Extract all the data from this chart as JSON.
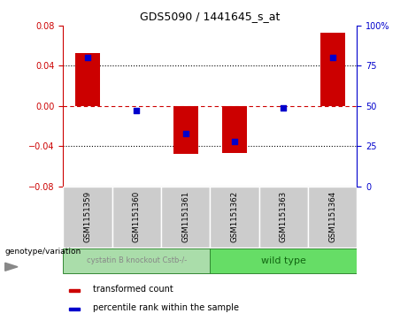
{
  "title": "GDS5090 / 1441645_s_at",
  "samples": [
    "GSM1151359",
    "GSM1151360",
    "GSM1151361",
    "GSM1151362",
    "GSM1151363",
    "GSM1151364"
  ],
  "transformed_counts": [
    0.053,
    0.0,
    -0.048,
    -0.047,
    0.0,
    0.073
  ],
  "percentile_ranks": [
    80,
    47,
    33,
    28,
    49,
    80
  ],
  "bar_color": "#CC0000",
  "dot_color": "#0000CC",
  "ylim_left": [
    -0.08,
    0.08
  ],
  "ylim_right": [
    0,
    100
  ],
  "yticks_left": [
    -0.08,
    -0.04,
    0.0,
    0.04,
    0.08
  ],
  "yticks_right": [
    0,
    25,
    50,
    75,
    100
  ],
  "yticklabels_right": [
    "0",
    "25",
    "50",
    "75",
    "100%"
  ],
  "background_color": "#ffffff",
  "plot_bg": "#ffffff",
  "zero_line_color": "#CC0000",
  "left_axis_color": "#CC0000",
  "right_axis_color": "#0000CC",
  "group1_label": "cystatin B knockout Cstb-/-",
  "group2_label": "wild type",
  "group1_color": "#aaddaa",
  "group2_color": "#66dd66",
  "group1_text_color": "#888888",
  "group2_text_color": "#116611",
  "sample_box_color": "#cccccc",
  "genotype_label": "genotype/variation",
  "legend_items": [
    "transformed count",
    "percentile rank within the sample"
  ],
  "bar_width": 0.5
}
